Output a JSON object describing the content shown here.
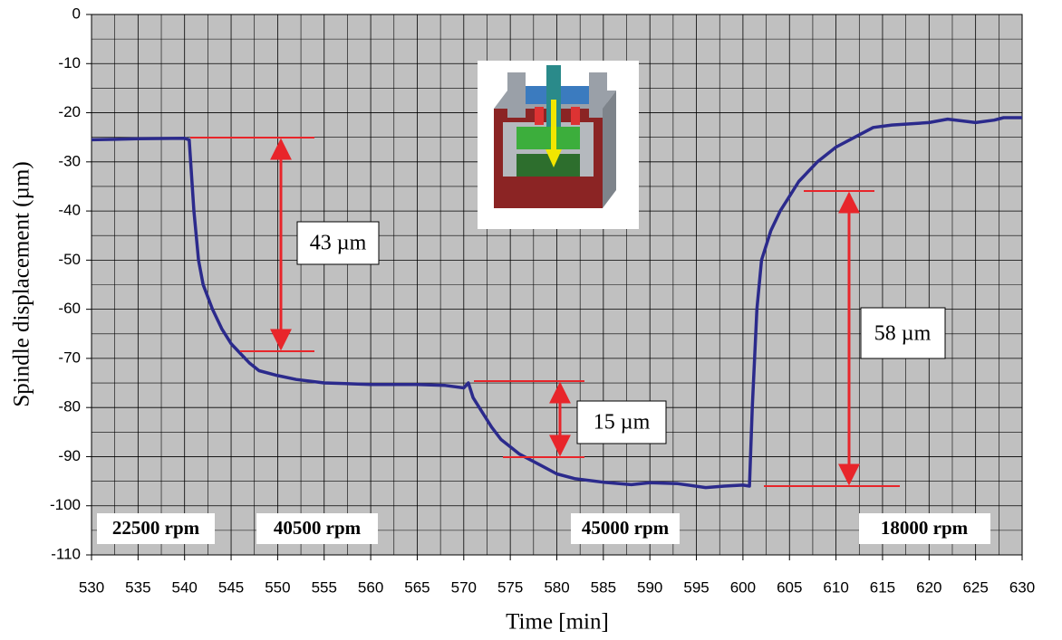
{
  "chart_data": {
    "type": "line",
    "x_label": "Time  [min]",
    "y_label": "Spindle displacement (µm)",
    "xlim": [
      530,
      630
    ],
    "xticks": [
      530,
      535,
      540,
      545,
      550,
      555,
      560,
      565,
      570,
      575,
      580,
      585,
      590,
      595,
      600,
      605,
      610,
      615,
      620,
      625,
      630
    ],
    "ylim": [
      -110,
      0
    ],
    "yticks": [
      0,
      -10,
      -20,
      -30,
      -40,
      -50,
      -60,
      -70,
      -80,
      -90,
      -100,
      -110
    ],
    "grid": true,
    "series": [
      {
        "color": "#2b2a8c",
        "x": [
          530,
          535,
          540,
          540.5,
          541,
          541.5,
          542,
          543,
          544,
          545,
          546,
          547,
          548,
          550,
          552,
          555,
          560,
          565,
          568,
          570,
          570.5,
          571,
          572,
          573,
          574,
          575,
          576,
          578,
          580,
          582,
          585,
          588,
          590,
          593,
          596,
          598,
          600,
          600.7,
          601,
          601.5,
          602,
          603,
          604,
          605,
          606,
          608,
          610,
          612,
          614,
          616,
          620,
          622,
          625,
          627,
          628,
          630
        ],
        "values": [
          -25.5,
          -25.3,
          -25.2,
          -25.5,
          -40,
          -50,
          -55,
          -60,
          -64,
          -67,
          -69,
          -71,
          -72.5,
          -73.5,
          -74.3,
          -75,
          -75.3,
          -75.3,
          -75.5,
          -76,
          -75,
          -78,
          -81,
          -84,
          -86.5,
          -88,
          -89.5,
          -91.5,
          -93.5,
          -94.5,
          -95.2,
          -95.7,
          -95.3,
          -95.5,
          -96.3,
          -96,
          -95.8,
          -96,
          -80,
          -60,
          -50,
          -44,
          -40,
          -37,
          -34,
          -30,
          -27,
          -25,
          -23,
          -22.5,
          -22,
          -21.3,
          -22,
          -21.5,
          -21,
          -21
        ]
      }
    ],
    "annotations": [
      "43 µm",
      "15 µm",
      "58 µm",
      "22500 rpm",
      "40500 rpm",
      "45000 rpm",
      "18000 rpm"
    ]
  }
}
